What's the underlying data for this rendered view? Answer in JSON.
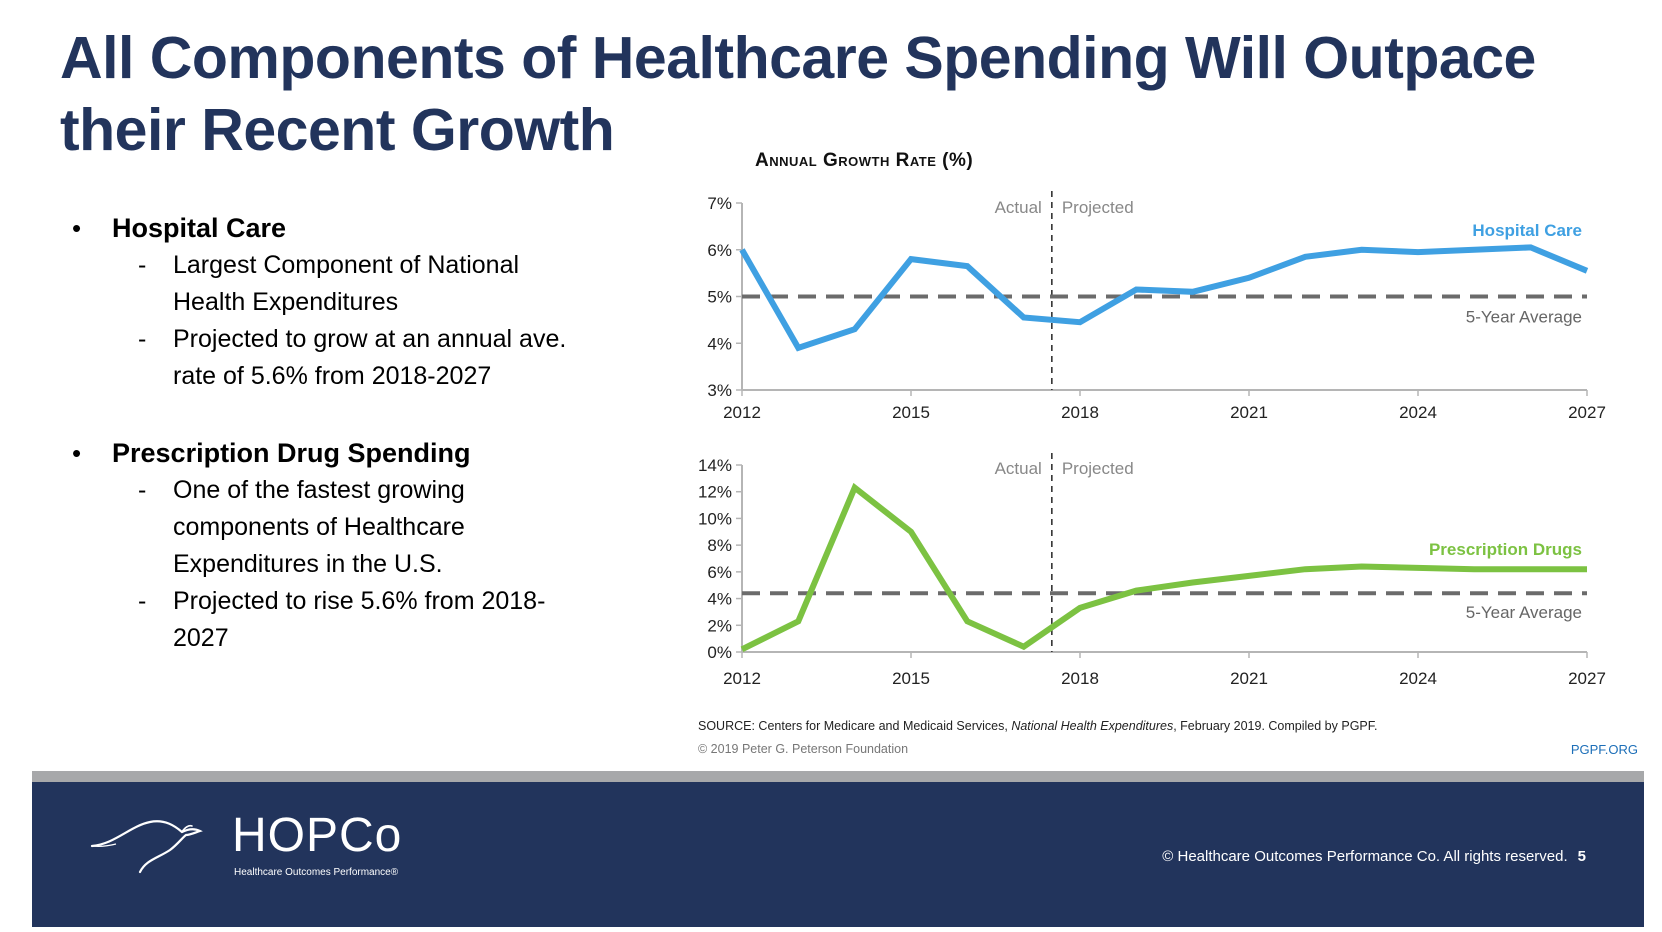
{
  "slide": {
    "title_line1": "All Components of Healthcare Spending Will Outpace",
    "title_line2": "their Recent Growth",
    "bullets": [
      {
        "heading": "Hospital Care",
        "subs": [
          [
            "Largest Component of National",
            "Health Expenditures"
          ],
          [
            "Projected to grow at an annual ave.",
            "rate of 5.6% from 2018-2027"
          ]
        ]
      },
      {
        "heading": "Prescription Drug Spending",
        "subs": [
          [
            "One of the fastest growing",
            "components of Healthcare",
            "Expenditures in the U.S."
          ],
          [
            "Projected to rise 5.6% from 2018-",
            "2027"
          ]
        ]
      }
    ],
    "bullet_glyph": "•",
    "dash_glyph": "-"
  },
  "chart_header": "Annual Growth Rate (%)",
  "chart_data": [
    {
      "type": "line",
      "title": "Annual Growth Rate (%)",
      "xlabel": "",
      "ylabel": "",
      "x": [
        2012,
        2013,
        2014,
        2015,
        2016,
        2017,
        2018,
        2019,
        2020,
        2021,
        2022,
        2023,
        2024,
        2025,
        2026,
        2027
      ],
      "x_ticks": [
        "2012",
        "2015",
        "2018",
        "2021",
        "2024",
        "2027"
      ],
      "x_tick_values": [
        2012,
        2015,
        2018,
        2021,
        2024,
        2027
      ],
      "ylim": [
        3,
        7
      ],
      "y_ticks": [
        "3%",
        "4%",
        "5%",
        "6%",
        "7%"
      ],
      "y_tick_values": [
        3,
        4,
        5,
        6,
        7
      ],
      "series": [
        {
          "name": "Hospital Care",
          "color": "#3fa0e2",
          "values": [
            6.0,
            3.9,
            4.3,
            5.8,
            5.65,
            4.55,
            4.45,
            5.15,
            5.1,
            5.4,
            5.85,
            6.0,
            5.95,
            6.0,
            6.05,
            5.55
          ]
        }
      ],
      "reference_line": {
        "label": "5-Year Average",
        "value": 5.0,
        "color": "#6b6b6b"
      },
      "divider": {
        "x": 2017.5,
        "left_label": "Actual",
        "right_label": "Projected"
      },
      "grid": false,
      "legend": "top-right"
    },
    {
      "type": "line",
      "title": "",
      "xlabel": "",
      "ylabel": "",
      "x": [
        2012,
        2013,
        2014,
        2015,
        2016,
        2017,
        2018,
        2019,
        2020,
        2021,
        2022,
        2023,
        2024,
        2025,
        2026,
        2027
      ],
      "x_ticks": [
        "2012",
        "2015",
        "2018",
        "2021",
        "2024",
        "2027"
      ],
      "x_tick_values": [
        2012,
        2015,
        2018,
        2021,
        2024,
        2027
      ],
      "ylim": [
        0,
        14
      ],
      "y_ticks": [
        "0%",
        "2%",
        "4%",
        "6%",
        "8%",
        "10%",
        "12%",
        "14%"
      ],
      "y_tick_values": [
        0,
        2,
        4,
        6,
        8,
        10,
        12,
        14
      ],
      "series": [
        {
          "name": "Prescription Drugs",
          "color": "#7cc242",
          "values": [
            0.2,
            2.3,
            12.3,
            9.0,
            2.3,
            0.4,
            3.3,
            4.6,
            5.2,
            5.7,
            6.2,
            6.4,
            6.3,
            6.2,
            6.2,
            6.2
          ]
        }
      ],
      "reference_line": {
        "label": "5-Year Average",
        "value": 4.4,
        "color": "#6b6b6b"
      },
      "divider": {
        "x": 2017.5,
        "left_label": "Actual",
        "right_label": "Projected"
      },
      "grid": false,
      "legend": "right"
    }
  ],
  "source": {
    "prefix": "SOURCE: Centers for Medicare and Medicaid Services, ",
    "italic": "National Health Expenditures",
    "suffix": ", February 2019. Compiled by PGPF.",
    "copyright": "© 2019 Peter G. Peterson Foundation",
    "site": "PGPF.ORG"
  },
  "footer": {
    "logo_text": "HOPCo",
    "logo_tagline": "Healthcare Outcomes Performance®",
    "copyright": "© Healthcare Outcomes Performance Co. All rights reserved.",
    "page_number": "5"
  }
}
